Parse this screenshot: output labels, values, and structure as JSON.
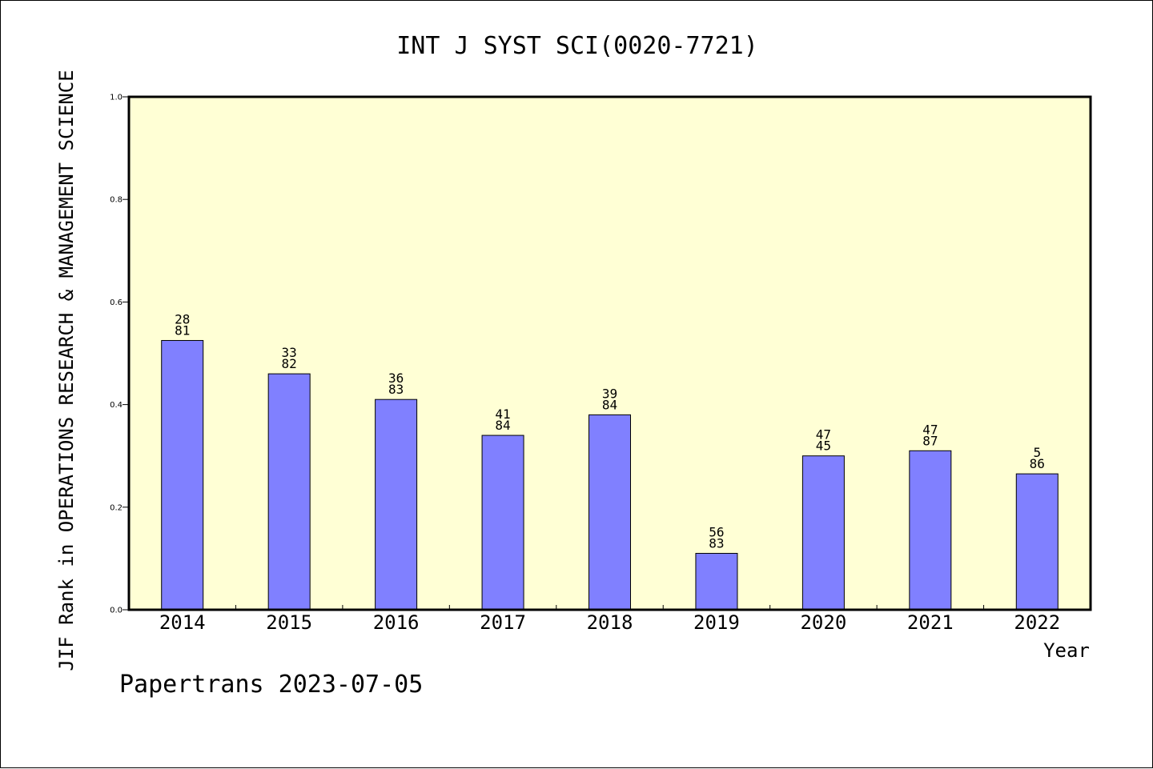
{
  "chart_data": {
    "type": "bar",
    "title": "INT J SYST SCI(0020-7721)",
    "ylabel": "JIF Rank in OPERATIONS RESEARCH & MANAGEMENT SCIENCE",
    "xlabel": "Year",
    "footer": "Papertrans 2023-07-05",
    "ylim": [
      0,
      1.0
    ],
    "yticks": [
      "0.0",
      "0.2",
      "0.4",
      "0.6",
      "0.8",
      "1.0"
    ],
    "categories": [
      "2014",
      "2015",
      "2016",
      "2017",
      "2018",
      "2019",
      "2020",
      "2021",
      "2022"
    ],
    "values": [
      0.525,
      0.46,
      0.41,
      0.34,
      0.38,
      0.11,
      0.3,
      0.31,
      0.265
    ],
    "rank": [
      "28",
      "33",
      "36",
      "41",
      "39",
      "56",
      "47",
      "47",
      "5"
    ],
    "total": [
      "81",
      "82",
      "83",
      "84",
      "84",
      "83",
      "45",
      "87",
      "86"
    ],
    "grid": false,
    "colors": {
      "plot_bg": "#FFFFD5",
      "bar": "#8080FF",
      "axis": "#000000"
    }
  }
}
